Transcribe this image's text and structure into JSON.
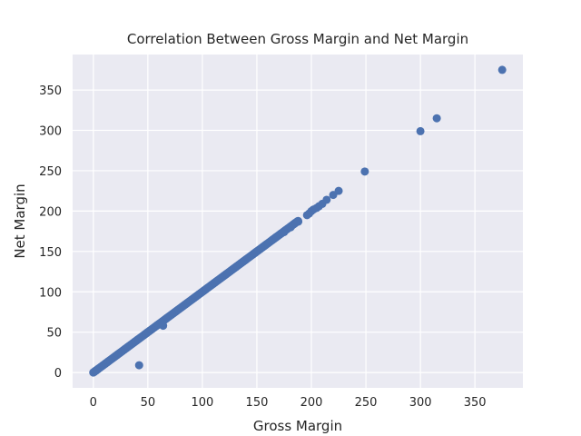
{
  "chart_data": {
    "type": "scatter",
    "title": "Correlation Between Gross Margin and Net Margin",
    "xlabel": "Gross Margin",
    "ylabel": "Net Margin",
    "xlim": [
      -19,
      394
    ],
    "ylim": [
      -19,
      394
    ],
    "xticks": [
      0,
      50,
      100,
      150,
      200,
      250,
      300,
      350
    ],
    "yticks": [
      0,
      50,
      100,
      150,
      200,
      250,
      300,
      350
    ],
    "grid": true,
    "background": "#eaeaf2",
    "marker_color": "#4c72b0",
    "diagonal_range": [
      0,
      188
    ],
    "points": [
      {
        "x": 0,
        "y": 0
      },
      {
        "x": 1,
        "y": 1
      },
      {
        "x": 2,
        "y": 2
      },
      {
        "x": 3,
        "y": 3
      },
      {
        "x": 42,
        "y": 9
      },
      {
        "x": 64,
        "y": 58
      },
      {
        "x": 165,
        "y": 165
      },
      {
        "x": 168,
        "y": 168
      },
      {
        "x": 172,
        "y": 172
      },
      {
        "x": 175,
        "y": 174
      },
      {
        "x": 181,
        "y": 180
      },
      {
        "x": 184,
        "y": 184
      },
      {
        "x": 188,
        "y": 187
      },
      {
        "x": 196,
        "y": 195
      },
      {
        "x": 198,
        "y": 197
      },
      {
        "x": 200,
        "y": 200
      },
      {
        "x": 202,
        "y": 202
      },
      {
        "x": 205,
        "y": 204
      },
      {
        "x": 207,
        "y": 206
      },
      {
        "x": 210,
        "y": 209
      },
      {
        "x": 214,
        "y": 214
      },
      {
        "x": 220,
        "y": 220
      },
      {
        "x": 225,
        "y": 225
      },
      {
        "x": 249,
        "y": 249
      },
      {
        "x": 300,
        "y": 299
      },
      {
        "x": 315,
        "y": 315
      },
      {
        "x": 375,
        "y": 375
      }
    ]
  }
}
